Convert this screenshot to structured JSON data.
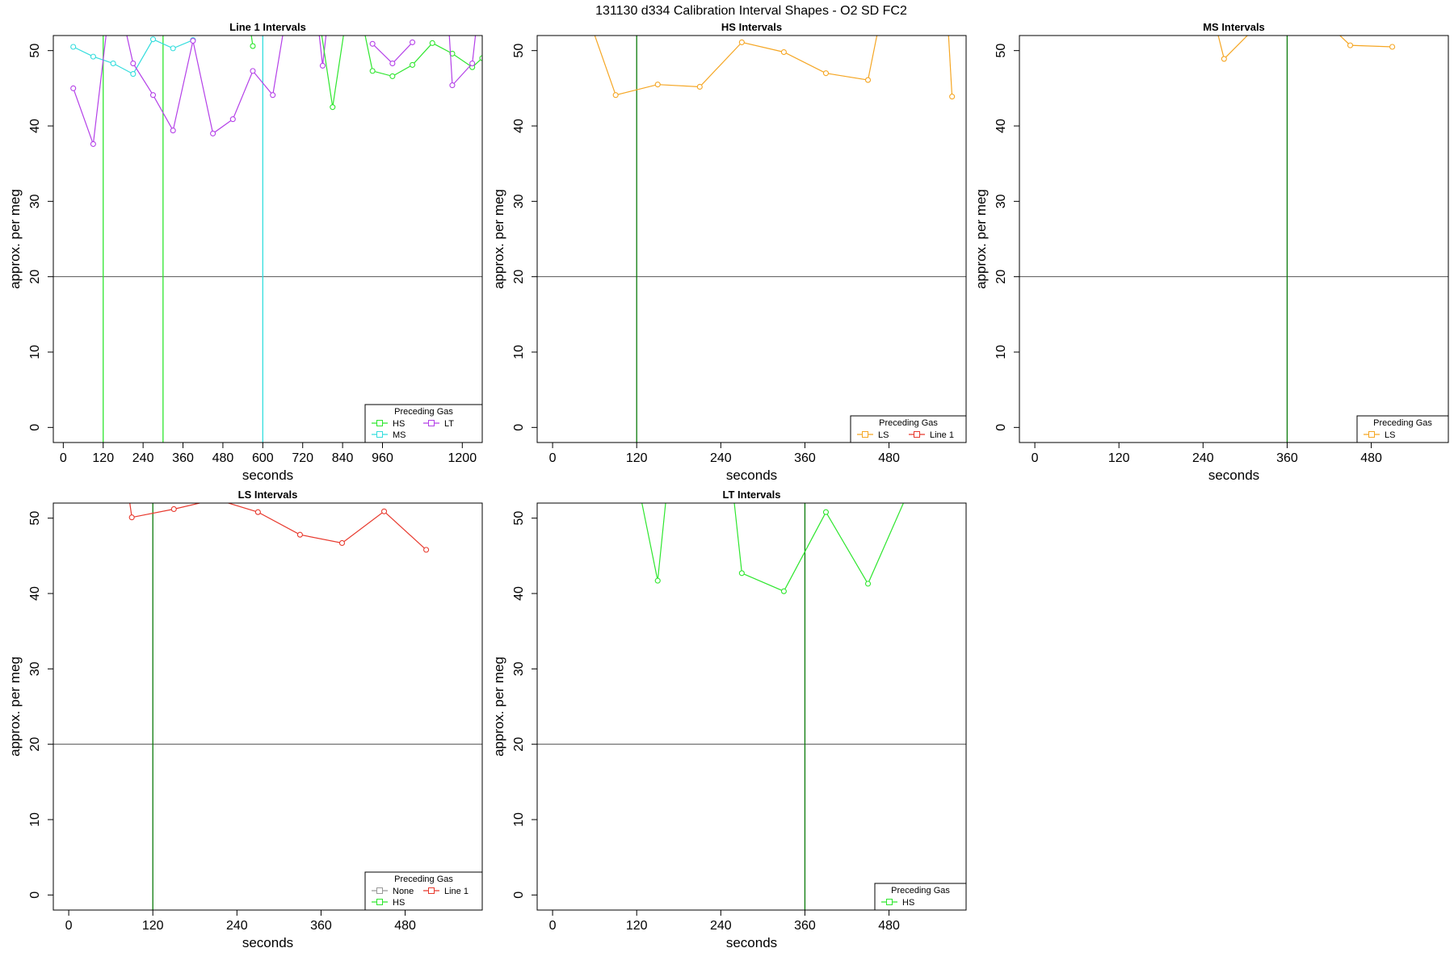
{
  "figure": {
    "title": "131130   d334   Calibration Interval Shapes - O2 SD FC2"
  },
  "colors": {
    "None": "#999999",
    "HS": "#2ee62e",
    "MS": "#33dddd",
    "LT": "#b440e8",
    "LS": "#f5a623",
    "Line 1": "#e8392d",
    "axis": "#000000",
    "refline": "#555555",
    "vline": "#0a7a0a"
  },
  "chart_data": [
    {
      "type": "line",
      "title": "Line 1 Intervals",
      "xlabel": "seconds",
      "ylabel": "approx. per meg",
      "xlim": [
        -30,
        1260
      ],
      "ylim": [
        -2,
        52
      ],
      "xticks": [
        0,
        120,
        240,
        360,
        480,
        600,
        720,
        840,
        960,
        1200
      ],
      "yticks": [
        0,
        10,
        20,
        30,
        40,
        50
      ],
      "hline": 20,
      "vlines": [
        {
          "x": 120,
          "color": "HS"
        },
        {
          "x": 300,
          "color": "HS"
        },
        {
          "x": 600,
          "color": "MS"
        }
      ],
      "legend": {
        "title": "Preceding Gas",
        "position": "bottom-right",
        "entries": [
          "HS",
          "LT",
          "MS"
        ]
      },
      "series": [
        {
          "name": "MS",
          "points": [
            [
              30,
              50.5
            ],
            [
              90,
              49.2
            ],
            [
              150,
              48.3
            ],
            [
              210,
              46.9
            ],
            [
              270,
              51.5
            ],
            [
              330,
              50.3
            ],
            [
              390,
              51.4
            ]
          ]
        },
        {
          "name": "LT",
          "points": [
            [
              30,
              45.0
            ],
            [
              90,
              37.6
            ],
            [
              150,
              60
            ],
            [
              210,
              48.3
            ],
            [
              270,
              44.1
            ],
            [
              330,
              39.4
            ],
            [
              390,
              51.3
            ],
            [
              450,
              39.0
            ],
            [
              510,
              40.9
            ],
            [
              570,
              47.3
            ],
            [
              630,
              44.1
            ],
            [
              690,
              60
            ],
            [
              750,
              60
            ],
            [
              780,
              48.0
            ],
            [
              810,
              60
            ]
          ]
        },
        {
          "name": "HS",
          "points": [
            [
              540,
              60
            ],
            [
              570,
              50.6
            ]
          ]
        },
        {
          "name": "HS",
          "points": [
            [
              750,
              60
            ],
            [
              810,
              42.5
            ],
            [
              870,
              60
            ],
            [
              930,
              47.3
            ],
            [
              990,
              46.6
            ],
            [
              1050,
              48.1
            ],
            [
              1110,
              51.0
            ],
            [
              1170,
              49.6
            ],
            [
              1230,
              47.8
            ],
            [
              1260,
              49.0
            ]
          ]
        },
        {
          "name": "LT",
          "points": [
            [
              930,
              50.9
            ],
            [
              990,
              48.3
            ],
            [
              1050,
              51.1
            ]
          ]
        },
        {
          "name": "LT",
          "points": [
            [
              1150,
              60
            ],
            [
              1170,
              45.4
            ],
            [
              1230,
              48.3
            ],
            [
              1260,
              60
            ]
          ]
        }
      ]
    },
    {
      "type": "line",
      "title": "HS Intervals",
      "xlabel": "seconds",
      "ylabel": "approx. per meg",
      "xlim": [
        -22,
        590
      ],
      "ylim": [
        -2,
        52
      ],
      "xticks": [
        0,
        120,
        240,
        360,
        480
      ],
      "yticks": [
        0,
        10,
        20,
        30,
        40,
        50
      ],
      "hline": 20,
      "vlines": [
        {
          "x": 120,
          "color": "vline"
        }
      ],
      "legend": {
        "title": "Preceding Gas",
        "position": "bottom-right",
        "entries": [
          "LS",
          "Line 1"
        ]
      },
      "series": [
        {
          "name": "LS",
          "points": [
            [
              30,
              60
            ],
            [
              90,
              44.1
            ],
            [
              150,
              45.5
            ],
            [
              210,
              45.2
            ],
            [
              270,
              51.1
            ],
            [
              330,
              49.8
            ],
            [
              390,
              47.0
            ],
            [
              450,
              46.1
            ],
            [
              480,
              60
            ]
          ]
        },
        {
          "name": "LS",
          "points": [
            [
              560,
              60
            ],
            [
              570,
              43.9
            ]
          ]
        }
      ]
    },
    {
      "type": "line",
      "title": "MS Intervals",
      "xlabel": "seconds",
      "ylabel": "approx. per meg",
      "xlim": [
        -22,
        590
      ],
      "ylim": [
        -2,
        52
      ],
      "xticks": [
        0,
        120,
        240,
        360,
        480
      ],
      "yticks": [
        0,
        10,
        20,
        30,
        40,
        50
      ],
      "hline": 20,
      "vlines": [
        {
          "x": 360,
          "color": "vline"
        }
      ],
      "legend": {
        "title": "Preceding Gas",
        "position": "bottom-right",
        "entries": [
          "LS"
        ]
      },
      "series": [
        {
          "name": "LS",
          "points": [
            [
              240,
              60
            ],
            [
              270,
              48.9
            ],
            [
              330,
              54.5
            ],
            [
              390,
              56
            ],
            [
              450,
              50.7
            ],
            [
              510,
              50.5
            ]
          ]
        }
      ]
    },
    {
      "type": "line",
      "title": "LS Intervals",
      "xlabel": "seconds",
      "ylabel": "approx. per meg",
      "xlim": [
        -22,
        590
      ],
      "ylim": [
        -2,
        52
      ],
      "xticks": [
        0,
        120,
        240,
        360,
        480
      ],
      "yticks": [
        0,
        10,
        20,
        30,
        40,
        50
      ],
      "hline": 20,
      "vlines": [
        {
          "x": 120,
          "color": "vline"
        }
      ],
      "legend": {
        "title": "Preceding Gas",
        "position": "bottom-right",
        "entries": [
          "None",
          "Line 1",
          "HS"
        ]
      },
      "series": [
        {
          "name": "Line 1",
          "points": [
            [
              75,
              60
            ],
            [
              90,
              50.1
            ],
            [
              150,
              51.2
            ],
            [
              210,
              52.5
            ],
            [
              270,
              50.8
            ],
            [
              330,
              47.8
            ],
            [
              390,
              46.7
            ],
            [
              450,
              50.9
            ],
            [
              510,
              45.8
            ]
          ]
        }
      ]
    },
    {
      "type": "line",
      "title": "LT Intervals",
      "xlabel": "seconds",
      "ylabel": "approx. per meg",
      "xlim": [
        -22,
        590
      ],
      "ylim": [
        -2,
        52
      ],
      "xticks": [
        0,
        120,
        240,
        360,
        480
      ],
      "yticks": [
        0,
        10,
        20,
        30,
        40,
        50
      ],
      "hline": 20,
      "vlines": [
        {
          "x": 360,
          "color": "vline"
        }
      ],
      "legend": {
        "title": "Preceding Gas",
        "position": "bottom-right",
        "entries": [
          "HS"
        ]
      },
      "series": [
        {
          "name": "HS",
          "points": [
            [
              110,
              60
            ],
            [
              150,
              41.7
            ],
            [
              170,
              60
            ]
          ]
        },
        {
          "name": "HS",
          "points": [
            [
              250,
              60
            ],
            [
              270,
              42.7
            ],
            [
              330,
              40.3
            ],
            [
              390,
              50.8
            ],
            [
              450,
              41.3
            ],
            [
              510,
              54
            ]
          ]
        }
      ]
    }
  ]
}
